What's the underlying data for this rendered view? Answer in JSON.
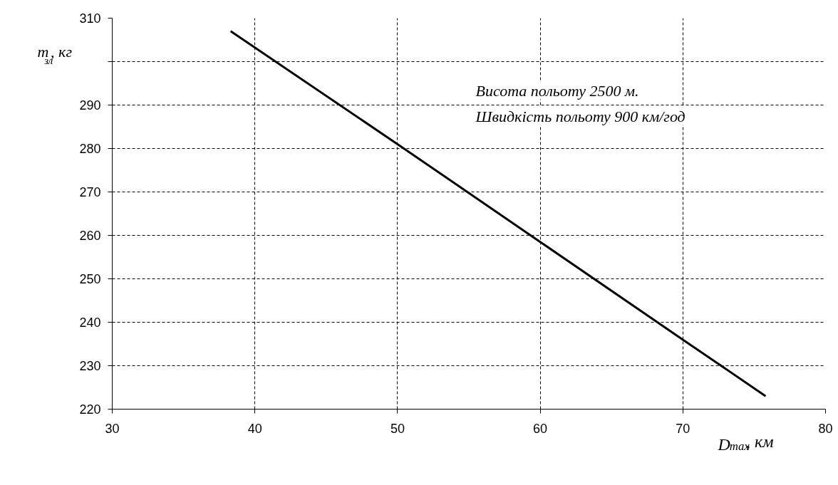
{
  "chart_data": {
    "type": "line",
    "xlabel": "D$_{max}$, км",
    "ylabel": "m$_{зл}$, кг",
    "x": [
      38.3,
      50,
      60,
      70,
      75.8
    ],
    "series": [
      {
        "color": "#000000",
        "values": [
          307,
          281,
          258.5,
          236,
          223
        ]
      }
    ],
    "xlim": [
      30,
      80
    ],
    "xticks": [
      30,
      40,
      50,
      60,
      70,
      80
    ],
    "ylim": [
      220,
      310
    ],
    "yticks": [
      220,
      230,
      240,
      250,
      260,
      270,
      280,
      290,
      {
        "value": 300,
        "label": null
      },
      310
    ],
    "grid": true,
    "marker": "none",
    "line_style": "solid",
    "annotations": [
      "Висота польоту 2500 м.",
      "Швидкість польоту 900 км/год"
    ]
  }
}
